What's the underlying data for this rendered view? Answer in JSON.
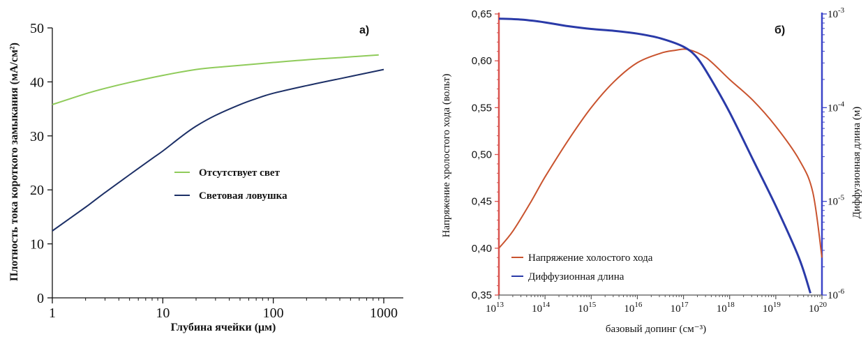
{
  "chart_data": [
    {
      "type": "line",
      "panel_label": "а)",
      "xlabel": "Глубина ячейки (μм)",
      "ylabel": "Плотность тока короткого замыкания (мА/см²)",
      "x_scale": "log",
      "xlim": [
        1,
        1000
      ],
      "ylim": [
        0,
        50
      ],
      "xticks": [
        1,
        10,
        100,
        1000
      ],
      "xtick_labels": [
        "1",
        "10",
        "100",
        "1000"
      ],
      "yticks": [
        0,
        10,
        20,
        30,
        40,
        50
      ],
      "ytick_labels": [
        "0",
        "10",
        "20",
        "30",
        "40",
        "50"
      ],
      "legend_position": "center",
      "series": [
        {
          "name": "Отсутствует свет",
          "color": "#8fcb5a",
          "x": [
            1,
            2,
            3,
            5,
            10,
            20,
            35,
            60,
            100,
            200,
            400,
            900
          ],
          "y": [
            35.8,
            37.8,
            38.8,
            39.9,
            41.2,
            42.3,
            42.8,
            43.2,
            43.6,
            44.1,
            44.5,
            45.0
          ]
        },
        {
          "name": "Световая ловушка",
          "color": "#1c2f66",
          "x": [
            1,
            2,
            3,
            5,
            8,
            10,
            15,
            20,
            30,
            50,
            70,
            100,
            200,
            400,
            1000
          ],
          "y": [
            12.4,
            16.8,
            19.5,
            22.8,
            25.8,
            27.2,
            30.0,
            31.8,
            33.8,
            35.8,
            36.9,
            37.9,
            39.3,
            40.6,
            42.3
          ]
        }
      ]
    },
    {
      "type": "line",
      "panel_label": "б)",
      "xlabel": "базовый допинг (см⁻³)",
      "ylabel_left": "Напряжение хролостого хода (вольт)",
      "ylabel_right": "Диффузионная длина (м)",
      "x_scale": "log",
      "xlim": [
        10000000000000.0,
        1e+20
      ],
      "ylim_left": [
        0.35,
        0.65
      ],
      "ylim_right": [
        1e-06,
        0.001
      ],
      "y_right_scale": "log",
      "xtick_exponents": [
        "13",
        "14",
        "15",
        "16",
        "17",
        "18",
        "19",
        "20"
      ],
      "xtick_base": "10",
      "yticks_left": [
        "0,35",
        "0,40",
        "0,45",
        "0,50",
        "0,55",
        "0,60",
        "0,65"
      ],
      "yticks_right_base": "10",
      "yticks_right_exponents": [
        "-6",
        "-5",
        "-4",
        "-3"
      ],
      "legend_position": "bottom-left",
      "series": [
        {
          "name": "Напряжение холостого хода",
          "axis": "left",
          "color": "#c9532e",
          "log10_x": [
            13.0,
            13.3,
            13.7,
            14.0,
            14.5,
            15.0,
            15.5,
            16.0,
            16.5,
            16.8,
            17.1,
            17.5,
            18.0,
            18.5,
            19.0,
            19.5,
            19.8,
            20.0
          ],
          "y": [
            0.4,
            0.418,
            0.45,
            0.476,
            0.515,
            0.55,
            0.578,
            0.598,
            0.608,
            0.611,
            0.612,
            0.603,
            0.58,
            0.558,
            0.53,
            0.495,
            0.46,
            0.39
          ]
        },
        {
          "name": "Диффузионная длина",
          "axis": "right",
          "color": "#2a3aa8",
          "log10_x": [
            13.0,
            13.5,
            14.0,
            14.5,
            15.0,
            15.5,
            16.0,
            16.5,
            17.0,
            17.3,
            17.6,
            18.0,
            18.5,
            19.0,
            19.5,
            19.75
          ],
          "log10_y": [
            -3.05,
            -3.06,
            -3.09,
            -3.13,
            -3.16,
            -3.18,
            -3.21,
            -3.26,
            -3.35,
            -3.47,
            -3.7,
            -4.05,
            -4.55,
            -5.05,
            -5.6,
            -5.98
          ]
        }
      ]
    }
  ]
}
